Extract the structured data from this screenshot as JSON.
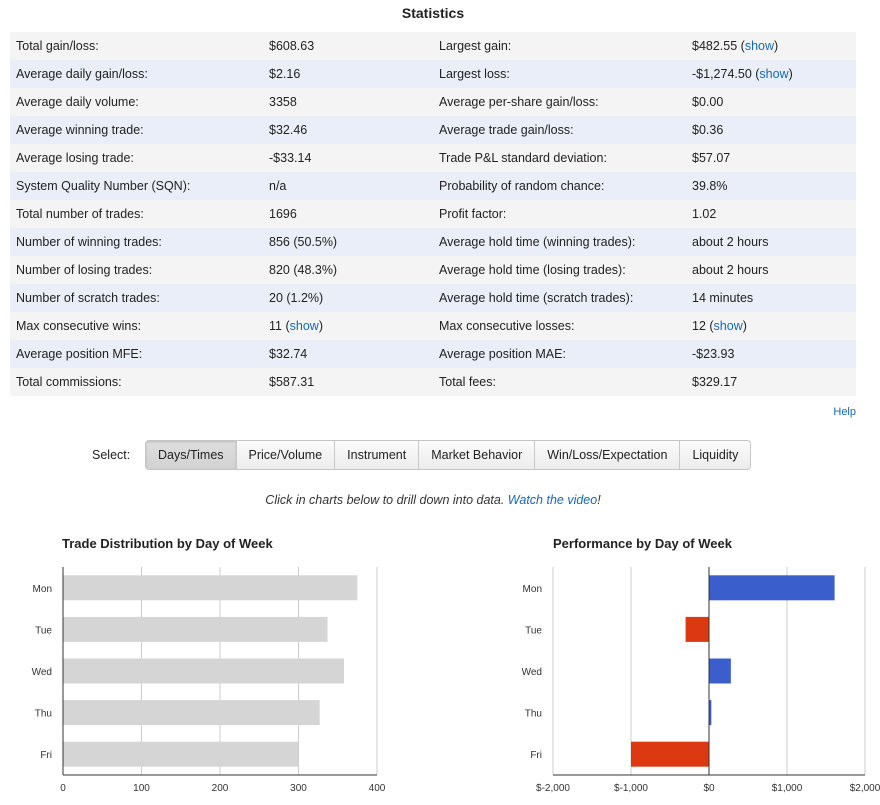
{
  "stats": {
    "title": "Statistics",
    "rows": [
      {
        "l1": "Total gain/loss:",
        "v1": "$608.63",
        "l2": "Largest gain:",
        "v2": "$482.55",
        "v2link": "show"
      },
      {
        "l1": "Average daily gain/loss:",
        "v1": "$2.16",
        "l2": "Largest loss:",
        "v2": "-$1,274.50",
        "v2link": "show"
      },
      {
        "l1": "Average daily volume:",
        "v1": "3358",
        "l2": "Average per-share gain/loss:",
        "v2": "$0.00"
      },
      {
        "l1": "Average winning trade:",
        "v1": "$32.46",
        "l2": "Average trade gain/loss:",
        "v2": "$0.36"
      },
      {
        "l1": "Average losing trade:",
        "v1": "-$33.14",
        "l2": "Trade P&L standard deviation:",
        "v2": "$57.07"
      },
      {
        "l1": "System Quality Number (SQN):",
        "v1": "n/a",
        "l2": "Probability of random chance:",
        "v2": "39.8%"
      },
      {
        "l1": "Total number of trades:",
        "v1": "1696",
        "l2": "Profit factor:",
        "v2": "1.02"
      },
      {
        "l1": "Number of winning trades:",
        "v1": "856 (50.5%)",
        "l2": "Average hold time (winning trades):",
        "v2": "about 2 hours"
      },
      {
        "l1": "Number of losing trades:",
        "v1": "820 (48.3%)",
        "l2": "Average hold time (losing trades):",
        "v2": "about 2 hours"
      },
      {
        "l1": "Number of scratch trades:",
        "v1": "20 (1.2%)",
        "l2": "Average hold time (scratch trades):",
        "v2": "14 minutes"
      },
      {
        "l1": "Max consecutive wins:",
        "v1": "11",
        "v1link": "show",
        "l2": "Max consecutive losses:",
        "v2": "12",
        "v2link": "show"
      },
      {
        "l1": "Average position MFE:",
        "v1": "$32.74",
        "l2": "Average position MAE:",
        "v2": "-$23.93"
      },
      {
        "l1": "Total commissions:",
        "v1": "$587.31",
        "l2": "Total fees:",
        "v2": "$329.17"
      }
    ],
    "help_label": "Help"
  },
  "select": {
    "label": "Select:",
    "tabs": [
      "Days/Times",
      "Price/Volume",
      "Instrument",
      "Market Behavior",
      "Win/Loss/Expectation",
      "Liquidity"
    ],
    "active": "Days/Times"
  },
  "hint": {
    "text": "Click in charts below to drill down into data.",
    "link": "Watch the video",
    "suffix": "!"
  },
  "colors": {
    "gray_bar": "#d5d5d5",
    "positive": "#3a5fcd",
    "negative": "#dc3912",
    "grid": "#cccccc",
    "link": "#1a66b3"
  },
  "chart_data": [
    {
      "type": "bar",
      "orientation": "horizontal",
      "title": "Trade Distribution by Day of Week",
      "categories": [
        "Mon",
        "Tue",
        "Wed",
        "Thu",
        "Fri"
      ],
      "values": [
        375,
        337,
        358,
        327,
        300
      ],
      "xlim": [
        0,
        400
      ],
      "xticks": [
        0,
        100,
        200,
        300,
        400
      ],
      "xtick_labels": [
        "0",
        "100",
        "200",
        "300",
        "400"
      ],
      "grid": true
    },
    {
      "type": "bar",
      "orientation": "horizontal",
      "title": "Performance by Day of Week",
      "categories": [
        "Mon",
        "Tue",
        "Wed",
        "Thu",
        "Fri"
      ],
      "values": [
        1610,
        -300,
        280,
        30,
        -1000
      ],
      "xlim": [
        -2000,
        2000
      ],
      "xticks": [
        -2000,
        -1000,
        0,
        1000,
        2000
      ],
      "xtick_labels": [
        "$-2,000",
        "$-1,000",
        "$0",
        "$1,000",
        "$2,000"
      ],
      "grid": true
    }
  ]
}
